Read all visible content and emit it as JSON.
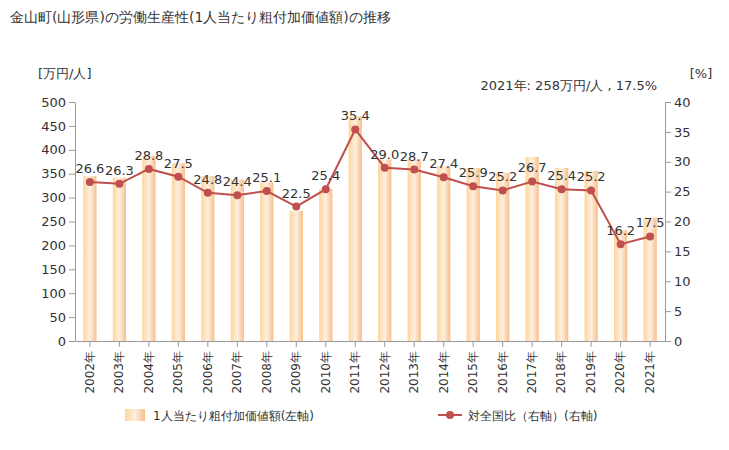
{
  "chart_data": {
    "type": "bar",
    "title": "金山町(山形県)の労働生産性(1人当たり粗付加価値額)の推移",
    "annotation": "2021年: 258万円/人 , 17.5%",
    "y_label": "[万円/人]",
    "y2_label": "[%]",
    "categories": [
      "2002年",
      "2003年",
      "2004年",
      "2005年",
      "2006年",
      "2007年",
      "2008年",
      "2009年",
      "2010年",
      "2011年",
      "2012年",
      "2013年",
      "2014年",
      "2015年",
      "2016年",
      "2017年",
      "2018年",
      "2019年",
      "2020年",
      "2021年"
    ],
    "series": [
      {
        "name": "1人当たり粗付加価値額(左軸)",
        "type": "bar",
        "color": "#f7bf8a",
        "values": [
          345,
          342,
          387,
          372,
          345,
          338,
          332,
          272,
          318,
          470,
          380,
          380,
          366,
          362,
          352,
          385,
          362,
          356,
          232,
          258
        ]
      },
      {
        "name": "対全国比（右軸）(右軸)",
        "type": "line",
        "axis": "y2",
        "color": "#c0504d",
        "marker": "circle",
        "data_labels": true,
        "values": [
          26.6,
          26.3,
          28.8,
          27.5,
          24.8,
          24.4,
          25.1,
          22.5,
          25.4,
          35.4,
          29.0,
          28.7,
          27.4,
          25.9,
          25.2,
          26.7,
          25.4,
          25.2,
          16.2,
          17.5
        ],
        "value_labels": [
          "26.6",
          "26.3",
          "28.8",
          "27.5",
          "24.8",
          "24.4",
          "25.1",
          "22.5",
          "25.4",
          "35.4",
          "29.0",
          "28.7",
          "27.4",
          "25.9",
          "25.2",
          "26.7",
          "25.4",
          "25.2",
          "16.2",
          "17.5"
        ]
      }
    ],
    "ylim": [
      0,
      500
    ],
    "yticks": [
      0,
      50,
      100,
      150,
      200,
      250,
      300,
      350,
      400,
      450,
      500
    ],
    "y2lim": [
      0,
      40
    ],
    "y2ticks": [
      0,
      5,
      10,
      15,
      20,
      25,
      30,
      35,
      40
    ],
    "grid": false,
    "legend": "bottom"
  }
}
